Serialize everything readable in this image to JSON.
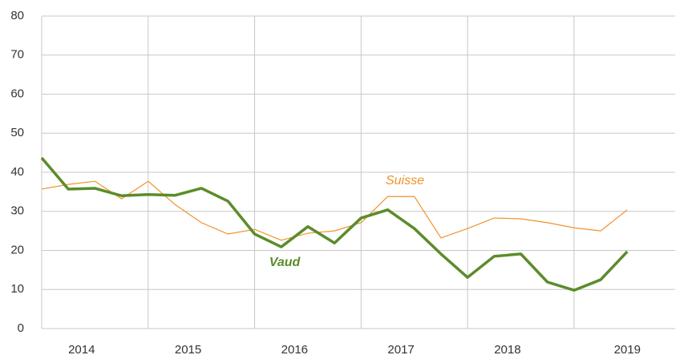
{
  "chart_data": {
    "type": "line",
    "x": [
      0,
      1,
      2,
      3,
      4,
      5,
      6,
      7,
      8,
      9,
      10,
      11,
      12,
      13,
      14,
      15,
      16,
      17,
      18,
      19,
      20,
      21,
      22
    ],
    "series": [
      {
        "name": "Suisse",
        "color": "#f0932b",
        "values": [
          35.7,
          36.9,
          37.7,
          33.2,
          37.7,
          31.8,
          27.1,
          24.2,
          25.4,
          22.6,
          24.4,
          25.0,
          27.1,
          33.8,
          33.8,
          23.2,
          25.6,
          28.3,
          28.1,
          27.1,
          25.8,
          25.0,
          30.4
        ]
      },
      {
        "name": "Vaud",
        "color": "#5b8c2a",
        "values": [
          43.7,
          35.7,
          35.9,
          34.0,
          34.3,
          34.1,
          35.9,
          32.6,
          24.2,
          20.9,
          26.1,
          21.9,
          28.3,
          30.4,
          25.6,
          19.1,
          13.1,
          18.5,
          19.1,
          11.9,
          9.8,
          12.5,
          19.7
        ]
      }
    ],
    "xlim": [
      0,
      23.8
    ],
    "xticks": [
      {
        "value": 1.5,
        "label": "2014"
      },
      {
        "value": 5.5,
        "label": "2015"
      },
      {
        "value": 9.5,
        "label": "2016"
      },
      {
        "value": 13.5,
        "label": "2017"
      },
      {
        "value": 17.5,
        "label": "2018"
      },
      {
        "value": 22,
        "label": "2019"
      }
    ],
    "xgrid": [
      4,
      8,
      12,
      16,
      20
    ],
    "ylim": [
      0,
      80
    ],
    "yticks": [
      0,
      10,
      20,
      30,
      40,
      50,
      60,
      70,
      80
    ],
    "grid": true
  }
}
